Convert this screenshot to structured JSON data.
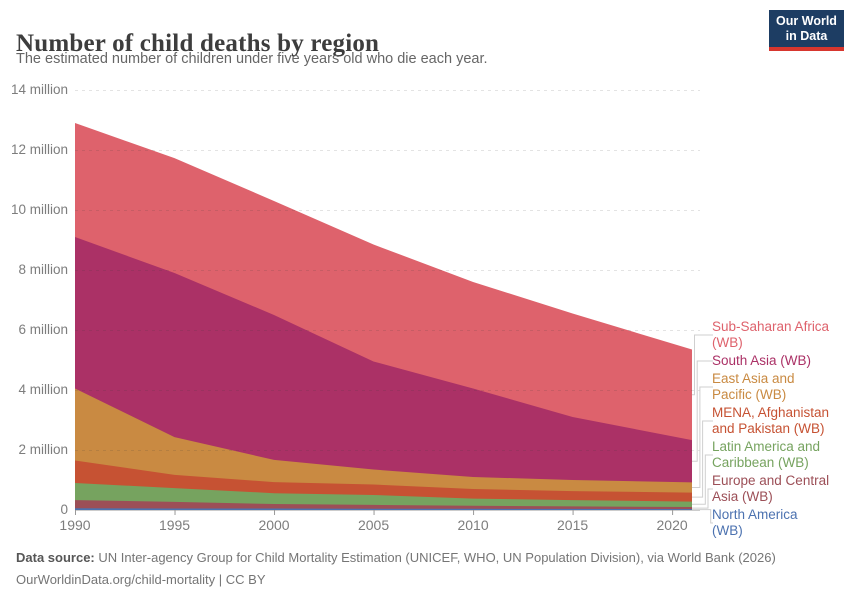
{
  "header": {
    "title": "Number of child deaths by region",
    "subtitle": "The estimated number of children under five years old who die each year.",
    "logo": {
      "line1": "Our World",
      "line2": "in Data",
      "bg_color": "#1d3d63",
      "accent_color": "#d7362e",
      "text_color": "#ffffff"
    }
  },
  "chart_data": {
    "type": "area",
    "stacked": true,
    "title": "Number of child deaths by region",
    "x_years": [
      1990,
      1995,
      2000,
      2005,
      2010,
      2015,
      2021
    ],
    "x_range": [
      1990,
      2021
    ],
    "x_ticks": [
      1990,
      1995,
      2000,
      2005,
      2010,
      2015,
      2020
    ],
    "y_unit": "million deaths per year",
    "ylim": [
      0,
      14
    ],
    "y_ticks": [
      {
        "v": 0,
        "label": "0"
      },
      {
        "v": 2,
        "label": "2 million"
      },
      {
        "v": 4,
        "label": "4 million"
      },
      {
        "v": 6,
        "label": "6 million"
      },
      {
        "v": 8,
        "label": "8 million"
      },
      {
        "v": 10,
        "label": "10 million"
      },
      {
        "v": 12,
        "label": "12 million"
      },
      {
        "v": 14,
        "label": "14 million"
      }
    ],
    "gridlines": "dashed horizontal",
    "legend_position": "right",
    "series_bottom_to_top": [
      {
        "name": "North America (WB)",
        "color": "#4C72B0",
        "values_million": [
          0.06,
          0.05,
          0.05,
          0.04,
          0.04,
          0.035,
          0.03
        ]
      },
      {
        "name": "Europe and Central Asia (WB)",
        "color": "#9C4F57",
        "values_million": [
          0.27,
          0.22,
          0.15,
          0.13,
          0.1,
          0.085,
          0.07
        ]
      },
      {
        "name": "Latin America and Caribbean (WB)",
        "color": "#76A35F",
        "values_million": [
          0.57,
          0.46,
          0.36,
          0.33,
          0.24,
          0.21,
          0.18
        ]
      },
      {
        "name": "MENA, Afghanistan and Pakistan (WB)",
        "color": "#C65233",
        "values_million": [
          0.75,
          0.44,
          0.37,
          0.35,
          0.32,
          0.3,
          0.3
        ]
      },
      {
        "name": "East Asia and Pacific (WB)",
        "color": "#C98A42",
        "values_million": [
          2.4,
          1.26,
          0.74,
          0.5,
          0.4,
          0.37,
          0.34
        ]
      },
      {
        "name": "South Asia (WB)",
        "color": "#AB3166",
        "values_million": [
          5.05,
          5.47,
          4.83,
          3.6,
          2.95,
          2.1,
          1.41
        ]
      },
      {
        "name": "Sub-Saharan Africa (WB)",
        "color": "#DE626C",
        "values_million": [
          3.8,
          3.83,
          3.8,
          3.9,
          3.55,
          3.45,
          3.02
        ]
      }
    ]
  },
  "legend": {
    "items": [
      {
        "label": "Sub-Saharan Africa\n(WB)",
        "color": "#DE626C"
      },
      {
        "label": "South Asia (WB)",
        "color": "#AB3166"
      },
      {
        "label": "East Asia and\nPacific (WB)",
        "color": "#C98A42"
      },
      {
        "label": "MENA, Afghanistan\nand Pakistan (WB)",
        "color": "#C65233"
      },
      {
        "label": "Latin America and\nCaribbean (WB)",
        "color": "#76A35F"
      },
      {
        "label": "Europe and Central\nAsia (WB)",
        "color": "#9C4F57"
      },
      {
        "label": "North America\n(WB)",
        "color": "#4C72B0"
      }
    ]
  },
  "footer": {
    "source_label": "Data source:",
    "source_text": " UN Inter-agency Group for Child Mortality Estimation (UNICEF, WHO, UN Population Division), via World Bank (2026)",
    "note": "OurWorldinData.org/child-mortality | CC BY"
  }
}
